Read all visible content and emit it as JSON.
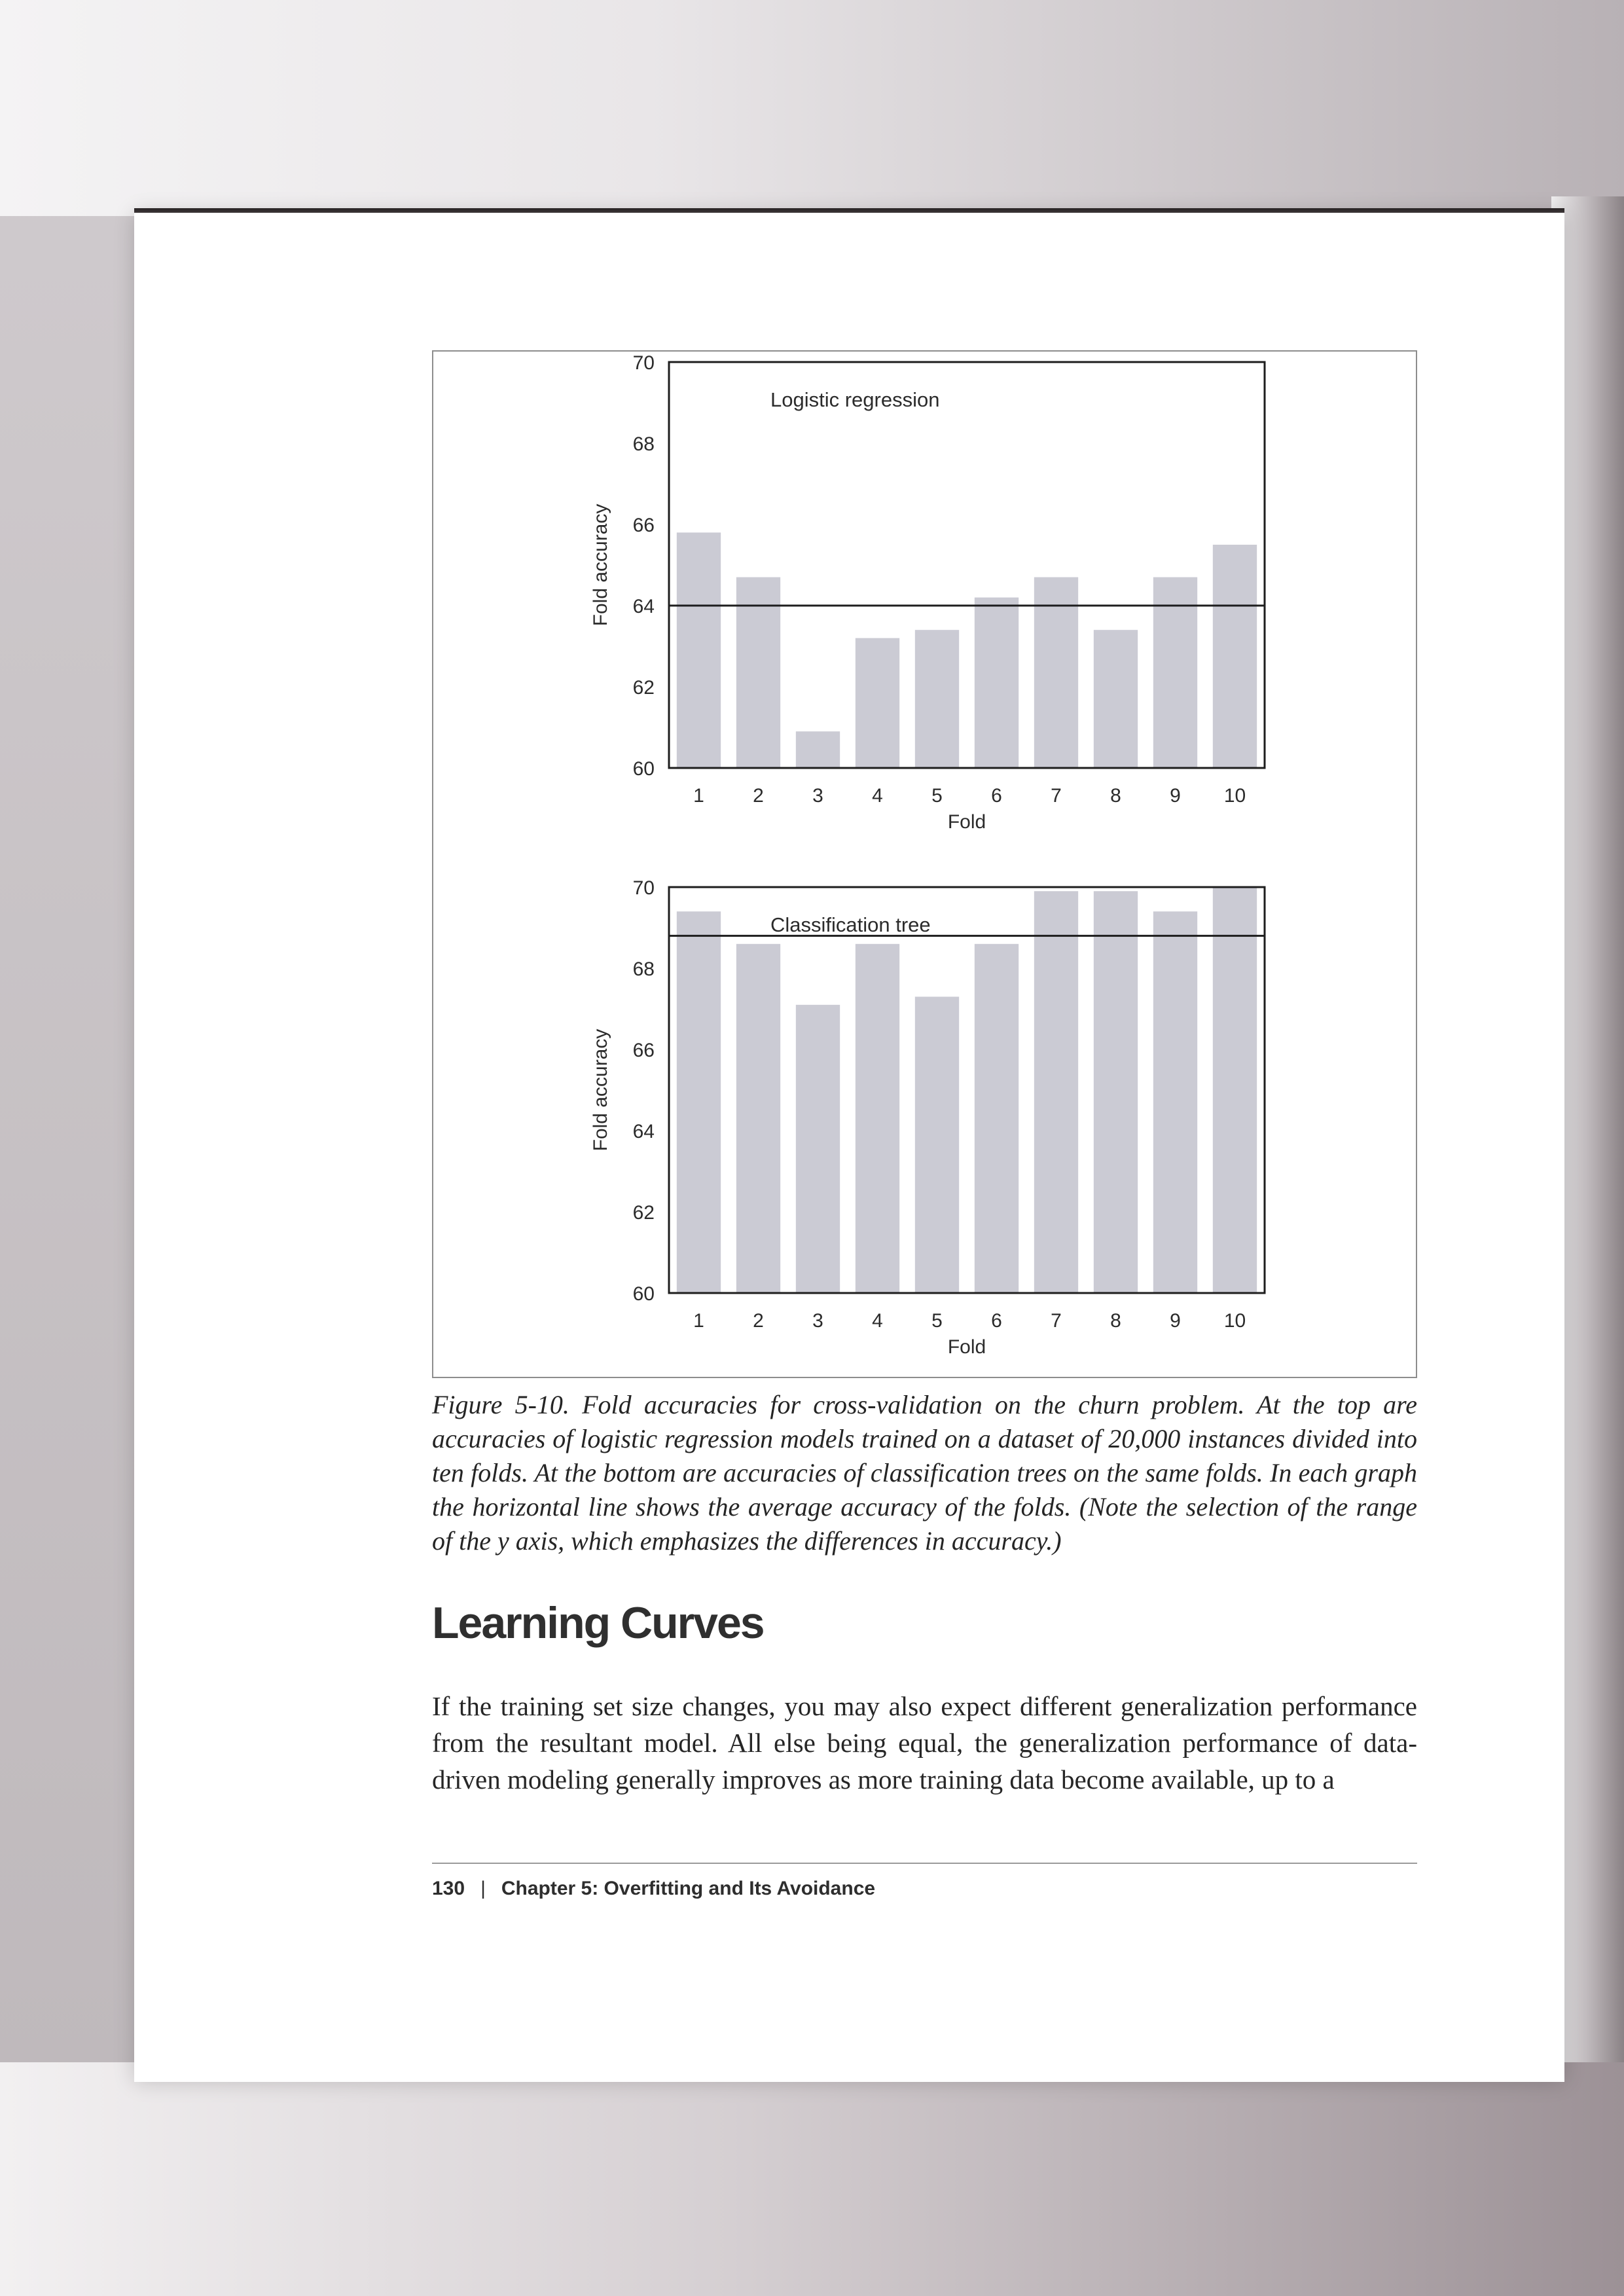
{
  "charts_colors": {
    "bar": "#cbcbd4",
    "axis": "#1e1e1e",
    "mean_line": "#1e1e1e"
  },
  "chart_data": [
    {
      "type": "bar",
      "title": "Logistic regression",
      "xlabel": "Fold",
      "ylabel": "Fold accuracy",
      "categories": [
        "1",
        "2",
        "3",
        "4",
        "5",
        "6",
        "7",
        "8",
        "9",
        "10"
      ],
      "values": [
        65.8,
        64.7,
        60.9,
        63.2,
        63.4,
        64.2,
        64.7,
        63.4,
        64.7,
        65.5
      ],
      "mean": 64.0,
      "ylim": [
        60,
        70
      ],
      "yticks": [
        "60",
        "62",
        "64",
        "66",
        "68",
        "70"
      ]
    },
    {
      "type": "bar",
      "title": "Classification tree",
      "xlabel": "Fold",
      "ylabel": "Fold accuracy",
      "categories": [
        "1",
        "2",
        "3",
        "4",
        "5",
        "6",
        "7",
        "8",
        "9",
        "10"
      ],
      "values": [
        69.4,
        68.6,
        67.1,
        68.6,
        67.3,
        68.6,
        69.9,
        69.9,
        69.4,
        70.0
      ],
      "mean": 68.8,
      "ylim": [
        60,
        70
      ],
      "yticks": [
        "60",
        "62",
        "64",
        "66",
        "68",
        "70"
      ]
    }
  ],
  "caption": "Figure 5-10. Fold accuracies for cross-validation on the churn problem. At the top are accuracies of logistic regression models trained on a dataset of 20,000 instances divided into ten folds. At the bottom are accuracies of classification trees on the same folds. In each graph the horizontal line shows the average accuracy of the folds. (Note the selection of the range of the y axis, which emphasizes the differences in accuracy.)",
  "heading": "Learning Curves",
  "body": "If the training set size changes, you may also expect different generalization performance from the resultant model. All else being equal, the generalization performance of data-driven modeling generally improves as more training data become available, up to a",
  "footer": {
    "page_number": "130",
    "separator": "|",
    "chapter": "Chapter 5: Overfitting and Its Avoidance"
  }
}
